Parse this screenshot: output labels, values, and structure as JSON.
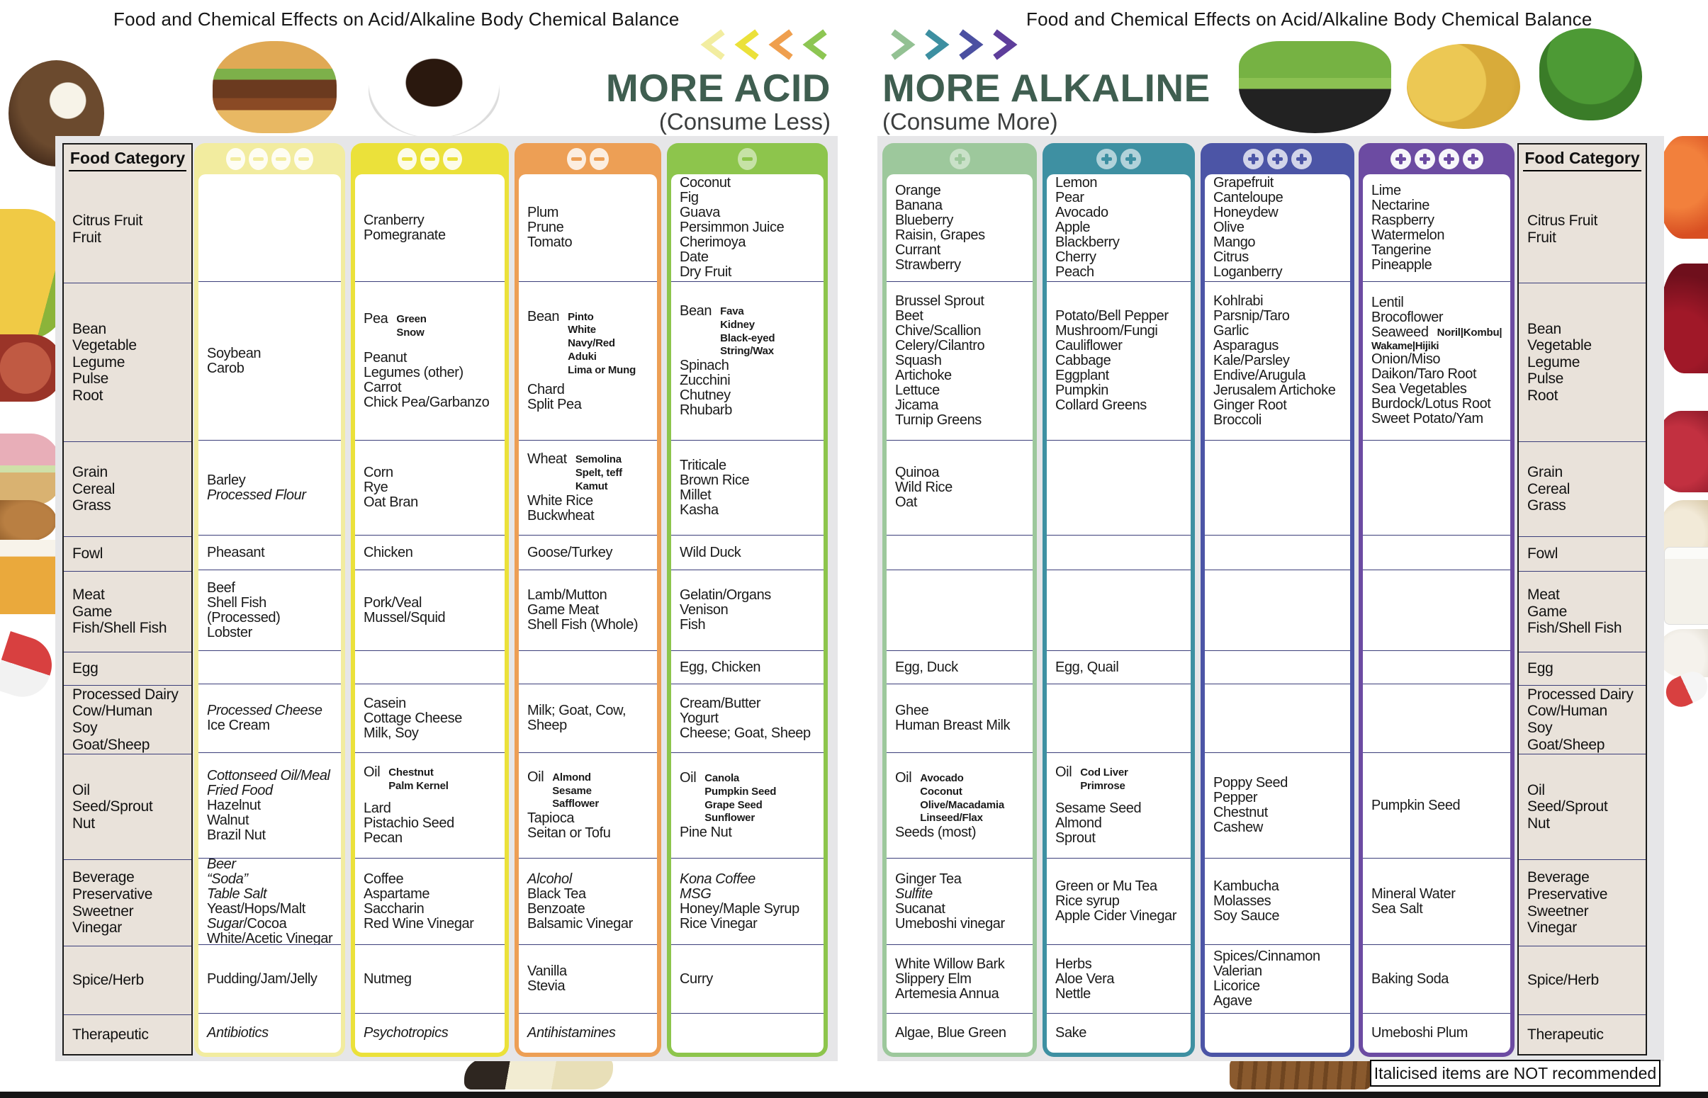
{
  "header": {
    "title": "Food and Chemical Effects on Acid/Alkaline Body Chemical Balance",
    "note": "Italicised items are NOT recommended"
  },
  "acid": {
    "title": "MORE ACID",
    "subtitle": "(Consume Less)",
    "title_color": "#3f5e50",
    "chevrons": [
      "#f2eda0",
      "#ebe13a",
      "#ef9f4e",
      "#8dc653"
    ]
  },
  "alkaline": {
    "title": "MORE ALKALINE",
    "subtitle": "(Consume More)",
    "title_color": "#3f5e50",
    "chevrons": [
      "#93c193",
      "#3d8fa1",
      "#4b50a1",
      "#5e3e9b"
    ]
  },
  "food_category_header": "Food Category",
  "row_keys": [
    "citrus-fruit",
    "bean-vegetable",
    "grain",
    "fowl",
    "meat",
    "egg",
    "processed-dairy",
    "oil-seed-nut",
    "beverage",
    "spice-herb",
    "therapeutic"
  ],
  "categories": [
    [
      "Citrus Fruit",
      "Fruit"
    ],
    [
      "Bean",
      "Vegetable",
      "Legume",
      "Pulse",
      "Root"
    ],
    [
      "Grain",
      "Cereal",
      "Grass"
    ],
    [
      "Fowl"
    ],
    [
      "Meat",
      "Game",
      "Fish/Shell Fish"
    ],
    [
      "Egg"
    ],
    [
      "Processed Dairy",
      "Cow/Human",
      "Soy",
      "Goat/Sheep"
    ],
    [
      "Oil",
      "Seed/Sprout",
      "Nut"
    ],
    [
      "Beverage",
      "Preservative",
      "Sweetner",
      "Vinegar"
    ],
    [
      "Spice/Herb"
    ],
    [
      "Therapeutic"
    ]
  ],
  "acid_table": {
    "symbol": "minus",
    "columns": [
      {
        "level": 4,
        "color": "#f2ec9f",
        "badge_bg": "rgba(255,255,255,0.88)",
        "cells": [
          [],
          [
            "Soybean",
            "Carob"
          ],
          [
            "Barley",
            {
              "t": "Processed Flour",
              "i": 1
            }
          ],
          [
            "Pheasant"
          ],
          [
            "Beef",
            "Shell Fish (Processed)",
            "Lobster"
          ],
          [],
          [
            {
              "t": "Processed Cheese",
              "i": 1
            },
            "Ice Cream"
          ],
          [
            {
              "t": "Cottonseed Oil/Meal",
              "i": 1
            },
            {
              "t": "Fried Food",
              "i": 1
            },
            "Hazelnut",
            "Walnut",
            "Brazil Nut"
          ],
          [
            {
              "t": "Beer",
              "i": 1
            },
            {
              "t": "“Soda”",
              "i": 1
            },
            {
              "t": "Table Salt",
              "i": 1
            },
            "Yeast/Hops/Malt",
            {
              "parts": [
                [
                  "Sugar",
                  1
                ],
                [
                  "/Cocoa",
                  0
                ]
              ]
            },
            "White/Acetic Vinegar"
          ],
          [
            "Pudding/Jam/Jelly"
          ],
          [
            {
              "t": "Antibiotics",
              "i": 1
            }
          ]
        ]
      },
      {
        "level": 3,
        "color": "#ebe13a",
        "badge_bg": "rgba(255,255,255,0.88)",
        "cells": [
          [
            "Cranberry",
            "Pomegranate"
          ],
          [
            {
              "m": "Pea",
              "sub": [
                "Green",
                "Snow"
              ]
            },
            {
              "gap": 16
            },
            "Peanut",
            "Legumes (other)",
            "Carrot",
            "Chick Pea/Garbanzo"
          ],
          [
            "Corn",
            "Rye",
            "Oat Bran"
          ],
          [
            "Chicken"
          ],
          [
            "Pork/Veal",
            "Mussel/Squid"
          ],
          [],
          [
            "Casein",
            "Cottage Cheese",
            "Milk, Soy"
          ],
          [
            {
              "m": "Oil",
              "sub": [
                "Chestnut",
                "Palm Kernel"
              ]
            },
            {
              "gap": 12
            },
            "Lard",
            "Pistachio Seed",
            "Pecan"
          ],
          [
            "Coffee",
            "Aspartame",
            "Saccharin",
            "Red Wine Vinegar"
          ],
          [
            "Nutmeg"
          ],
          [
            {
              "t": "Psychotropics",
              "i": 1
            }
          ]
        ]
      },
      {
        "level": 2,
        "color": "#ed9f55",
        "badge_bg": "rgba(255,255,255,0.82)",
        "cells": [
          [
            "Plum",
            "Prune",
            "Tomato"
          ],
          [
            {
              "m": "Bean",
              "sub": [
                "Pinto",
                "White",
                "Navy/Red",
                "Aduki",
                "Lima or Mung"
              ]
            },
            {
              "gap": 8
            },
            "Chard",
            "Split Pea"
          ],
          [
            {
              "m": "Wheat",
              "sub": [
                "Semolina",
                "Spelt, teff",
                "Kamut"
              ]
            },
            "White Rice",
            "Buckwheat"
          ],
          [
            "Goose/Turkey"
          ],
          [
            "Lamb/Mutton",
            "Game Meat",
            "Shell Fish (Whole)"
          ],
          [],
          [
            "Milk; Goat, Cow, Sheep"
          ],
          [
            {
              "m": "Oil",
              "sub": [
                "Almond",
                "Sesame",
                "Safflower"
              ]
            },
            "Tapioca",
            "Seitan or Tofu"
          ],
          [
            {
              "t": "Alcohol",
              "i": 1
            },
            "Black Tea",
            "Benzoate",
            "Balsamic Vinegar"
          ],
          [
            "Vanilla",
            "Stevia"
          ],
          [
            {
              "t": "Antihistamines",
              "i": 1
            }
          ]
        ]
      },
      {
        "level": 1,
        "color": "#8dc54c",
        "badge_bg": "rgba(255,255,255,0.5)",
        "cells": [
          [
            "Coconut",
            "Fig",
            "Guava",
            "Persimmon Juice",
            "Cherimoya",
            "Date",
            "Dry Fruit"
          ],
          [
            {
              "m": "Bean",
              "sub": [
                "Fava",
                "Kidney",
                "Black-eyed",
                "String/Wax"
              ]
            },
            "Spinach",
            "Zucchini",
            "Chutney",
            "Rhubarb"
          ],
          [
            "Triticale",
            "Brown Rice",
            "Millet",
            "Kasha"
          ],
          [
            "Wild Duck"
          ],
          [
            "Gelatin/Organs",
            "Venison",
            "Fish"
          ],
          [
            "Egg, Chicken"
          ],
          [
            "Cream/Butter",
            "Yogurt",
            "Cheese;  Goat, Sheep"
          ],
          [
            {
              "m": "Oil",
              "sub": [
                "Canola",
                "Pumpkin Seed",
                "Grape Seed",
                "Sunflower"
              ]
            },
            "Pine Nut"
          ],
          [
            {
              "t": "Kona Coffee",
              "i": 1
            },
            {
              "t": "MSG",
              "i": 1
            },
            "Honey/Maple Syrup",
            "Rice Vinegar"
          ],
          [
            "Curry"
          ],
          []
        ]
      }
    ]
  },
  "alkaline_table": {
    "symbol": "plus",
    "columns": [
      {
        "level": 1,
        "color": "#9dc89c",
        "badge_bg": "rgba(255,255,255,0.45)",
        "cells": [
          [
            "Orange",
            "Banana",
            "Blueberry",
            "Raisin,  Grapes",
            "Currant",
            "Strawberry"
          ],
          [
            "Brussel Sprout",
            "Beet",
            "Chive/Scallion",
            "Celery/Cilantro",
            "Squash",
            "Artichoke",
            "Lettuce",
            "Jicama",
            "Turnip Greens"
          ],
          [
            "Quinoa",
            "Wild Rice",
            "Oat"
          ],
          [],
          [],
          [
            "Egg, Duck"
          ],
          [
            "Ghee",
            "Human Breast Milk"
          ],
          [
            {
              "m": "Oil",
              "sub": [
                "Avocado",
                "Coconut",
                "Olive/Macadamia",
                "Linseed/Flax"
              ]
            },
            "Seeds (most)"
          ],
          [
            "Ginger Tea",
            {
              "t": "Sulfite",
              "i": 1
            },
            "Sucanat",
            "Umeboshi vinegar"
          ],
          [
            "White Willow Bark",
            "Slippery Elm",
            "Artemesia Annua"
          ],
          [
            "Algae, Blue Green"
          ]
        ]
      },
      {
        "level": 2,
        "color": "#3e90a2",
        "badge_bg": "rgba(255,255,255,0.6)",
        "cells": [
          [
            "Lemon",
            "Pear",
            "Avocado",
            "Apple",
            "Blackberry",
            "Cherry",
            "Peach"
          ],
          [
            "Potato/Bell Pepper",
            "Mushroom/Fungi",
            "Cauliflower",
            "Cabbage",
            "Eggplant",
            "Pumpkin",
            "Collard Greens"
          ],
          [],
          [],
          [],
          [
            "Egg, Quail"
          ],
          [],
          [
            {
              "m": "Oil",
              "sub": [
                "Cod Liver",
                "Primrose"
              ]
            },
            {
              "gap": 12
            },
            "Sesame Seed",
            "Almond",
            "Sprout"
          ],
          [
            "Green or Mu Tea",
            "Rice syrup",
            "Apple Cider Vinegar"
          ],
          [
            "Herbs",
            "Aloe Vera",
            "Nettle"
          ],
          [
            "Sake"
          ]
        ]
      },
      {
        "level": 3,
        "color": "#4c55a6",
        "badge_bg": "rgba(255,255,255,0.75)",
        "cells": [
          [
            "Grapefruit",
            "Canteloupe",
            "Honeydew",
            "Olive",
            "Mango",
            "Citrus",
            "Loganberry"
          ],
          [
            "Kohlrabi",
            "Parsnip/Taro",
            "Garlic",
            "Asparagus",
            "Kale/Parsley",
            "Endive/Arugula",
            "Jerusalem Artichoke",
            "Ginger Root",
            "Broccoli"
          ],
          [],
          [],
          [],
          [],
          [],
          [
            "Poppy Seed",
            "Pepper",
            "Chestnut",
            "Cashew"
          ],
          [
            "Kambucha",
            "Molasses",
            "Soy Sauce"
          ],
          [
            "Spices/Cinnamon",
            "Valerian",
            "Licorice",
            "Agave"
          ],
          []
        ]
      },
      {
        "level": 4,
        "color": "#6c4ba2",
        "badge_bg": "rgba(255,255,255,0.95)",
        "cells": [
          [
            "Lime",
            "Nectarine",
            "Raspberry",
            "Watermelon",
            "Tangerine",
            "Pineapple"
          ],
          [
            "Lentil",
            "Brocoflower",
            {
              "m": "Seaweed",
              "sub": [
                "Noril|Kombu|"
              ]
            },
            {
              "t": "Wakame|Hijiki",
              "s": 1
            },
            "Onion/Miso",
            "Daikon/Taro Root",
            "Sea Vegetables",
            "Burdock/Lotus Root",
            "Sweet Potato/Yam"
          ],
          [],
          [],
          [],
          [],
          [],
          [
            "Pumpkin Seed"
          ],
          [
            "Mineral Water",
            "Sea Salt"
          ],
          [
            "Baking Soda"
          ],
          [
            "Umeboshi Plum"
          ]
        ]
      }
    ]
  },
  "styles": {
    "separator": "#3b3e7a",
    "category_bg": "#e9e2da",
    "panel_bg": "#e6e6e8"
  }
}
